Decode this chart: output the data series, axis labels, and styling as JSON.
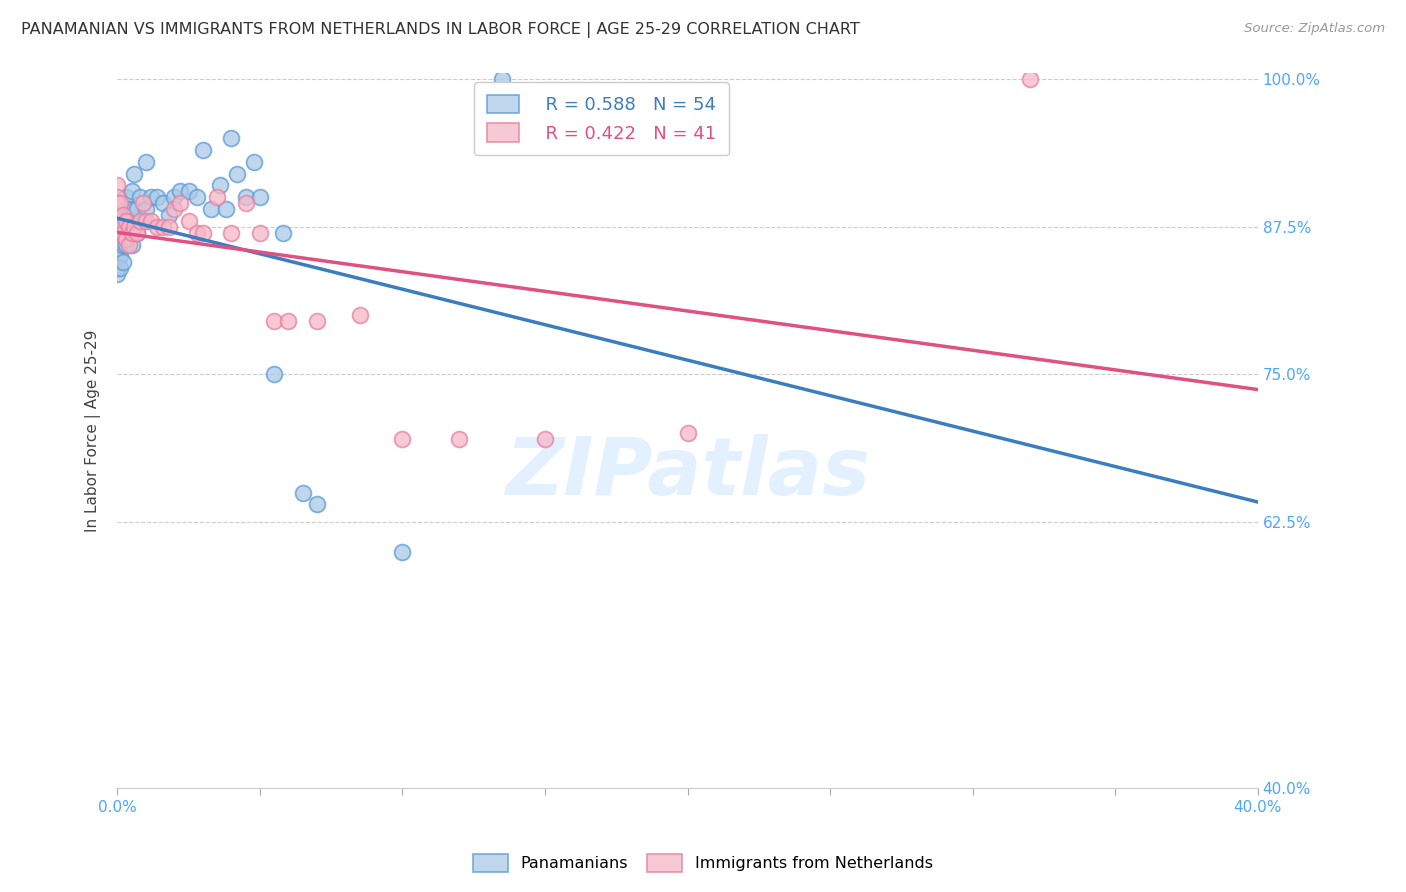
{
  "title": "PANAMANIAN VS IMMIGRANTS FROM NETHERLANDS IN LABOR FORCE | AGE 25-29 CORRELATION CHART",
  "source": "Source: ZipAtlas.com",
  "xlabel": "",
  "ylabel": "In Labor Force | Age 25-29",
  "xlim": [
    0.0,
    0.4
  ],
  "ylim": [
    0.4,
    1.005
  ],
  "xticks": [
    0.0,
    0.05,
    0.1,
    0.15,
    0.2,
    0.25,
    0.3,
    0.35,
    0.4
  ],
  "xticklabels": [
    "0.0%",
    "",
    "",
    "",
    "",
    "",
    "",
    "",
    "40.0%"
  ],
  "yticks": [
    0.4,
    0.625,
    0.75,
    0.875,
    1.0
  ],
  "yticklabels": [
    "40.0%",
    "62.5%",
    "75.0%",
    "87.5%",
    "100.0%"
  ],
  "blue_color": "#aac9e8",
  "pink_color": "#f4b8c8",
  "blue_edge_color": "#5b9bd5",
  "pink_edge_color": "#e87ea0",
  "blue_line_color": "#3a7ebf",
  "pink_line_color": "#e05080",
  "legend_blue_R": "R = 0.588",
  "legend_blue_N": "N = 54",
  "legend_pink_R": "R = 0.422",
  "legend_pink_N": "N = 41",
  "watermark": "ZIPatlas",
  "blue_scatter_x": [
    0.0,
    0.0,
    0.0,
    0.0,
    0.0,
    0.0,
    0.001,
    0.001,
    0.001,
    0.001,
    0.001,
    0.002,
    0.002,
    0.002,
    0.002,
    0.003,
    0.003,
    0.003,
    0.004,
    0.004,
    0.005,
    0.005,
    0.005,
    0.006,
    0.006,
    0.007,
    0.007,
    0.008,
    0.009,
    0.01,
    0.01,
    0.012,
    0.014,
    0.016,
    0.018,
    0.02,
    0.022,
    0.025,
    0.028,
    0.03,
    0.033,
    0.036,
    0.038,
    0.04,
    0.042,
    0.045,
    0.048,
    0.05,
    0.055,
    0.058,
    0.065,
    0.07,
    0.1,
    0.135
  ],
  "blue_scatter_y": [
    0.87,
    0.855,
    0.85,
    0.84,
    0.84,
    0.835,
    0.875,
    0.865,
    0.86,
    0.85,
    0.84,
    0.88,
    0.87,
    0.86,
    0.845,
    0.9,
    0.875,
    0.86,
    0.89,
    0.87,
    0.905,
    0.88,
    0.86,
    0.92,
    0.89,
    0.89,
    0.87,
    0.9,
    0.88,
    0.93,
    0.89,
    0.9,
    0.9,
    0.895,
    0.885,
    0.9,
    0.905,
    0.905,
    0.9,
    0.94,
    0.89,
    0.91,
    0.89,
    0.95,
    0.92,
    0.9,
    0.93,
    0.9,
    0.75,
    0.87,
    0.65,
    0.64,
    0.6,
    1.0
  ],
  "pink_scatter_x": [
    0.0,
    0.0,
    0.0,
    0.0,
    0.0,
    0.001,
    0.001,
    0.002,
    0.002,
    0.003,
    0.003,
    0.004,
    0.004,
    0.005,
    0.006,
    0.007,
    0.008,
    0.009,
    0.01,
    0.012,
    0.014,
    0.016,
    0.018,
    0.02,
    0.022,
    0.025,
    0.028,
    0.03,
    0.035,
    0.04,
    0.045,
    0.05,
    0.055,
    0.06,
    0.07,
    0.085,
    0.1,
    0.12,
    0.15,
    0.2,
    0.32
  ],
  "pink_scatter_y": [
    0.91,
    0.9,
    0.895,
    0.885,
    0.87,
    0.895,
    0.88,
    0.885,
    0.87,
    0.88,
    0.865,
    0.875,
    0.86,
    0.87,
    0.875,
    0.87,
    0.88,
    0.895,
    0.88,
    0.88,
    0.875,
    0.875,
    0.875,
    0.89,
    0.895,
    0.88,
    0.87,
    0.87,
    0.9,
    0.87,
    0.895,
    0.87,
    0.795,
    0.795,
    0.795,
    0.8,
    0.695,
    0.695,
    0.695,
    0.7,
    1.0
  ],
  "grid_color": "#cccccc",
  "title_color": "#333333",
  "tick_color": "#4da6ff",
  "background_color": "#ffffff"
}
